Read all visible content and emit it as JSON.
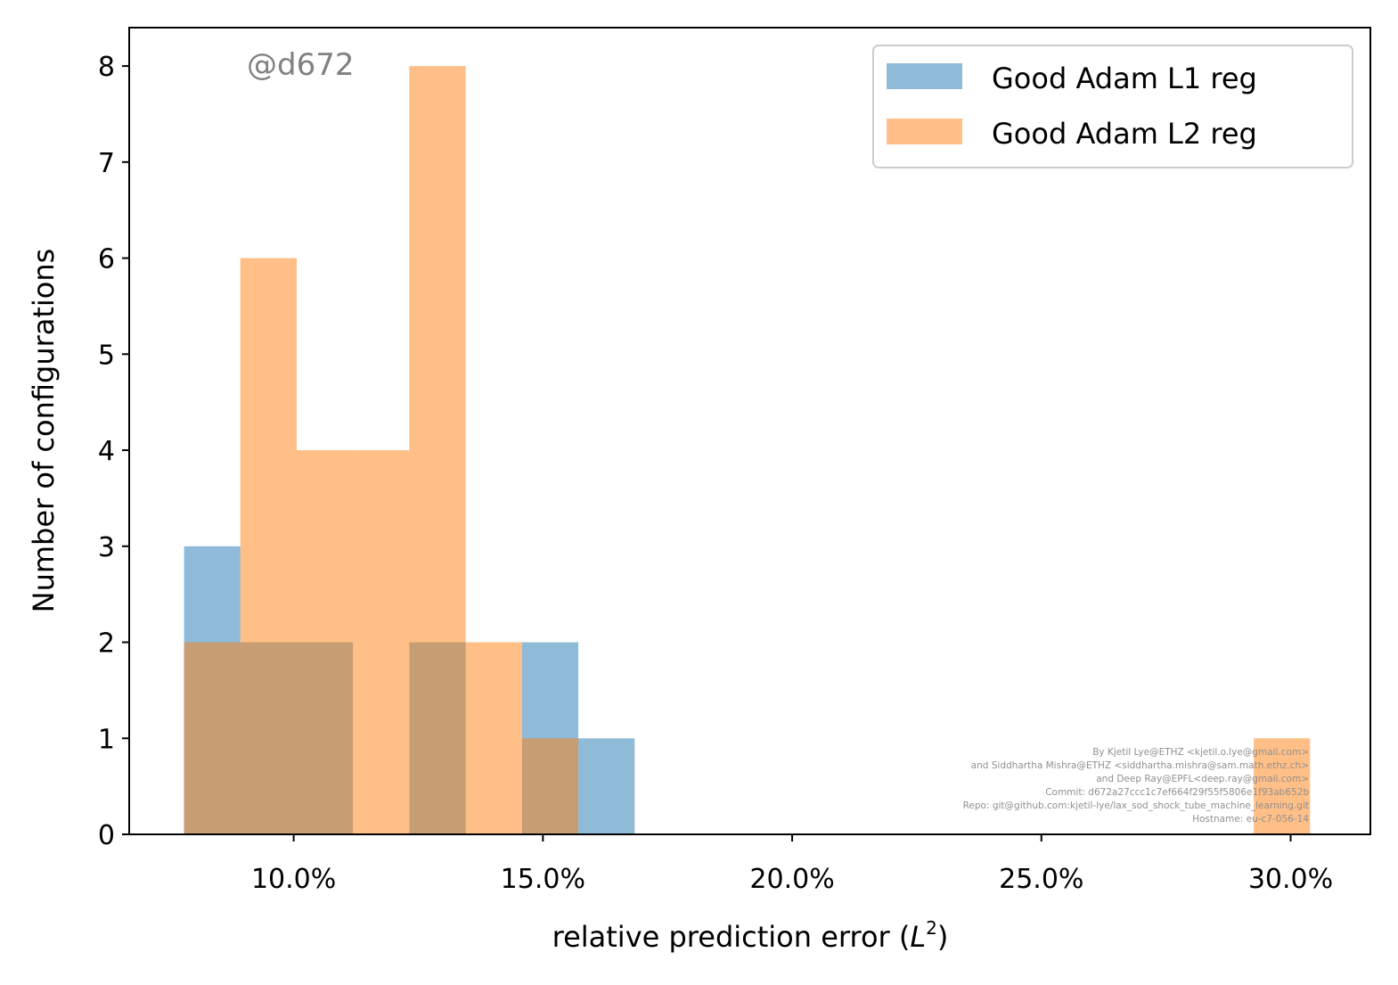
{
  "chart_data": {
    "type": "bar",
    "title": "",
    "xlabel": "relative prediction error (",
    "xlabel_symbol": "L",
    "xlabel_sup": "2",
    "xlabel_close": ")",
    "ylabel": "Number of configurations",
    "xlim": [
      6.7,
      31.6
    ],
    "ylim": [
      0,
      8.4
    ],
    "xticks": [
      {
        "value": 10,
        "label": "10.0%"
      },
      {
        "value": 15,
        "label": "15.0%"
      },
      {
        "value": 20,
        "label": "20.0%"
      },
      {
        "value": 25,
        "label": "25.0%"
      },
      {
        "value": 30,
        "label": "30.0%"
      }
    ],
    "yticks": [
      {
        "value": 0,
        "label": "0"
      },
      {
        "value": 1,
        "label": "1"
      },
      {
        "value": 2,
        "label": "2"
      },
      {
        "value": 3,
        "label": "3"
      },
      {
        "value": 4,
        "label": "4"
      },
      {
        "value": 5,
        "label": "5"
      },
      {
        "value": 6,
        "label": "6"
      },
      {
        "value": 7,
        "label": "7"
      },
      {
        "value": 8,
        "label": "8"
      }
    ],
    "grid": false,
    "legend_position": "top-right",
    "series": [
      {
        "name": "Good Adam L1 reg",
        "color": "#1f77b4",
        "opacity": 0.5,
        "bins": [
          {
            "x0": 7.8,
            "x1": 8.93,
            "count": 3
          },
          {
            "x0": 8.93,
            "x1": 10.06,
            "count": 2
          },
          {
            "x0": 10.06,
            "x1": 11.19,
            "count": 2
          },
          {
            "x0": 11.19,
            "x1": 12.32,
            "count": 0
          },
          {
            "x0": 12.32,
            "x1": 13.45,
            "count": 2
          },
          {
            "x0": 13.45,
            "x1": 14.58,
            "count": 0
          },
          {
            "x0": 14.58,
            "x1": 15.71,
            "count": 2
          },
          {
            "x0": 15.71,
            "x1": 16.84,
            "count": 1
          }
        ]
      },
      {
        "name": "Good Adam L2 reg",
        "color": "#ff7f0e",
        "opacity": 0.5,
        "bins": [
          {
            "x0": 7.8,
            "x1": 8.93,
            "count": 2
          },
          {
            "x0": 8.93,
            "x1": 10.06,
            "count": 6
          },
          {
            "x0": 10.06,
            "x1": 11.19,
            "count": 4
          },
          {
            "x0": 11.19,
            "x1": 12.32,
            "count": 4
          },
          {
            "x0": 12.32,
            "x1": 13.45,
            "count": 8
          },
          {
            "x0": 13.45,
            "x1": 14.58,
            "count": 2
          },
          {
            "x0": 14.58,
            "x1": 15.71,
            "count": 1
          },
          {
            "x0": 29.26,
            "x1": 30.39,
            "count": 1
          }
        ]
      }
    ]
  },
  "stamp": "@d672",
  "credits": [
    "By Kjetil Lye@ETHZ <kjetil.o.lye@gmail.com>",
    "and Siddhartha Mishra@ETHZ <siddhartha.mishra@sam.math.ethz.ch>",
    "and Deep Ray@EPFL<deep.ray@gmail.com>",
    "Commit: d672a27ccc1c7ef664f29f55f5806e1f93ab652b",
    "Repo: git@github.com:kjetil-lye/lax_sod_shock_tube_machine_learning.git",
    "Hostname: eu-c7-056-14"
  ]
}
